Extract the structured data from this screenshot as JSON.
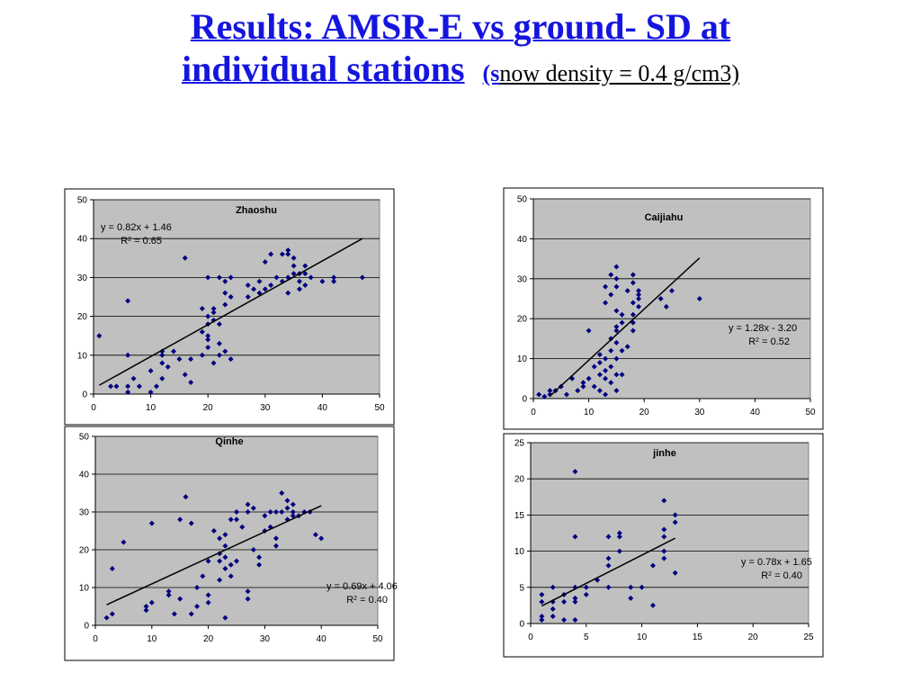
{
  "title": {
    "line1": "Results: AMSR-E vs ground- SD at",
    "line2": "individual stations",
    "paren_s": "(s",
    "subtitle": "now density = 0.4 g/cm3)"
  },
  "chart_data": [
    {
      "type": "scatter",
      "title": "Zhaoshu",
      "equation": "y = 0.82x + 1.46",
      "r2": "R2 = 0.65",
      "xlim": [
        0,
        50
      ],
      "ylim": [
        0,
        50
      ],
      "xticks": [
        0,
        10,
        20,
        30,
        40,
        50
      ],
      "yticks": [
        0,
        10,
        20,
        30,
        40,
        50
      ],
      "grid": true,
      "trendline": {
        "slope": 0.82,
        "intercept": 1.46,
        "x_range": [
          1,
          47
        ]
      },
      "points": [
        [
          1,
          15
        ],
        [
          3,
          2
        ],
        [
          4,
          2
        ],
        [
          6,
          0.5
        ],
        [
          6,
          2
        ],
        [
          6,
          10
        ],
        [
          6,
          24
        ],
        [
          7,
          4
        ],
        [
          8,
          2
        ],
        [
          10,
          0.5
        ],
        [
          10,
          6
        ],
        [
          11,
          2
        ],
        [
          12,
          4
        ],
        [
          12,
          8
        ],
        [
          12,
          10
        ],
        [
          12,
          11
        ],
        [
          13,
          7
        ],
        [
          14,
          11
        ],
        [
          15,
          9
        ],
        [
          16,
          5
        ],
        [
          16,
          35
        ],
        [
          17,
          3
        ],
        [
          17,
          9
        ],
        [
          19,
          10
        ],
        [
          19,
          16
        ],
        [
          19,
          22
        ],
        [
          20,
          12
        ],
        [
          20,
          14
        ],
        [
          20,
          15
        ],
        [
          20,
          18
        ],
        [
          20,
          20
        ],
        [
          20,
          30
        ],
        [
          21,
          8
        ],
        [
          21,
          19
        ],
        [
          21,
          21
        ],
        [
          21,
          22
        ],
        [
          22,
          10
        ],
        [
          22,
          13
        ],
        [
          22,
          18
        ],
        [
          22,
          30
        ],
        [
          23,
          23
        ],
        [
          23,
          26
        ],
        [
          23,
          29
        ],
        [
          23,
          11
        ],
        [
          24,
          9
        ],
        [
          24,
          25
        ],
        [
          24,
          30
        ],
        [
          27,
          25
        ],
        [
          27,
          28
        ],
        [
          28,
          27
        ],
        [
          29,
          26
        ],
        [
          29,
          29
        ],
        [
          30,
          27
        ],
        [
          30,
          34
        ],
        [
          31,
          28
        ],
        [
          31,
          36
        ],
        [
          32,
          30
        ],
        [
          33,
          29
        ],
        [
          33,
          36
        ],
        [
          34,
          26
        ],
        [
          34,
          30
        ],
        [
          34,
          36
        ],
        [
          34,
          37
        ],
        [
          35,
          31
        ],
        [
          35,
          33
        ],
        [
          35,
          35
        ],
        [
          36,
          27
        ],
        [
          36,
          29
        ],
        [
          36,
          31
        ],
        [
          37,
          28
        ],
        [
          37,
          31
        ],
        [
          37,
          33
        ],
        [
          38,
          30
        ],
        [
          40,
          29
        ],
        [
          42,
          29
        ],
        [
          42,
          30
        ],
        [
          47,
          30
        ]
      ]
    },
    {
      "type": "scatter",
      "title": "Caijiahu",
      "equation": "y = 1.28x - 3.20",
      "r2": "R2 = 0.52",
      "xlim": [
        0,
        50
      ],
      "ylim": [
        0,
        50
      ],
      "xticks": [
        0,
        10,
        20,
        30,
        40,
        50
      ],
      "yticks": [
        0,
        10,
        20,
        30,
        40,
        50
      ],
      "grid": true,
      "trendline": {
        "slope": 1.28,
        "intercept": -3.2,
        "x_range": [
          3,
          30
        ]
      },
      "points": [
        [
          1,
          1
        ],
        [
          2,
          0.5
        ],
        [
          3,
          1
        ],
        [
          3,
          2
        ],
        [
          4,
          2
        ],
        [
          5,
          3
        ],
        [
          6,
          1
        ],
        [
          7,
          5
        ],
        [
          8,
          2
        ],
        [
          9,
          3
        ],
        [
          9,
          4
        ],
        [
          10,
          5
        ],
        [
          10,
          17
        ],
        [
          11,
          3
        ],
        [
          11,
          8
        ],
        [
          12,
          2
        ],
        [
          12,
          6
        ],
        [
          12,
          9
        ],
        [
          12,
          11
        ],
        [
          13,
          1
        ],
        [
          13,
          5
        ],
        [
          13,
          7
        ],
        [
          13,
          10
        ],
        [
          13,
          24
        ],
        [
          13,
          28
        ],
        [
          14,
          4
        ],
        [
          14,
          8
        ],
        [
          14,
          12
        ],
        [
          14,
          15
        ],
        [
          14,
          26
        ],
        [
          14,
          31
        ],
        [
          15,
          2
        ],
        [
          15,
          6
        ],
        [
          15,
          10
        ],
        [
          15,
          14
        ],
        [
          15,
          17
        ],
        [
          15,
          18
        ],
        [
          15,
          22
        ],
        [
          15,
          28
        ],
        [
          15,
          30
        ],
        [
          15,
          33
        ],
        [
          16,
          6
        ],
        [
          16,
          12
        ],
        [
          16,
          19
        ],
        [
          16,
          21
        ],
        [
          17,
          13
        ],
        [
          17,
          27
        ],
        [
          18,
          17
        ],
        [
          18,
          19
        ],
        [
          18,
          21
        ],
        [
          18,
          24
        ],
        [
          18,
          29
        ],
        [
          18,
          31
        ],
        [
          19,
          23
        ],
        [
          19,
          25
        ],
        [
          19,
          26
        ],
        [
          19,
          27
        ],
        [
          23,
          25
        ],
        [
          24,
          23
        ],
        [
          25,
          27
        ],
        [
          30,
          25
        ]
      ]
    },
    {
      "type": "scatter",
      "title": "Qinhe",
      "equation": "y = 0.69x + 4.06",
      "r2": "R2 = 0.40",
      "xlim": [
        0,
        50
      ],
      "ylim": [
        0,
        50
      ],
      "xticks": [
        0,
        10,
        20,
        30,
        40,
        50
      ],
      "yticks": [
        0,
        10,
        20,
        30,
        40,
        50
      ],
      "grid": true,
      "trendline": {
        "slope": 0.69,
        "intercept": 4.06,
        "x_range": [
          2,
          40
        ]
      },
      "points": [
        [
          2,
          2
        ],
        [
          3,
          3
        ],
        [
          3,
          15
        ],
        [
          5,
          22
        ],
        [
          9,
          4
        ],
        [
          9,
          5
        ],
        [
          10,
          6
        ],
        [
          10,
          27
        ],
        [
          13,
          8
        ],
        [
          13,
          9
        ],
        [
          14,
          3
        ],
        [
          15,
          7
        ],
        [
          15,
          28
        ],
        [
          16,
          34
        ],
        [
          17,
          3
        ],
        [
          17,
          27
        ],
        [
          18,
          5
        ],
        [
          18,
          10
        ],
        [
          19,
          13
        ],
        [
          20,
          6
        ],
        [
          20,
          8
        ],
        [
          20,
          17
        ],
        [
          21,
          25
        ],
        [
          22,
          12
        ],
        [
          22,
          17
        ],
        [
          22,
          19
        ],
        [
          22,
          23
        ],
        [
          23,
          2
        ],
        [
          23,
          15
        ],
        [
          23,
          18
        ],
        [
          23,
          21
        ],
        [
          23,
          24
        ],
        [
          24,
          13
        ],
        [
          24,
          16
        ],
        [
          24,
          28
        ],
        [
          25,
          17
        ],
        [
          25,
          28
        ],
        [
          25,
          30
        ],
        [
          26,
          26
        ],
        [
          27,
          7
        ],
        [
          27,
          9
        ],
        [
          27,
          30
        ],
        [
          27,
          32
        ],
        [
          28,
          20
        ],
        [
          28,
          31
        ],
        [
          29,
          16
        ],
        [
          29,
          18
        ],
        [
          30,
          25
        ],
        [
          30,
          29
        ],
        [
          31,
          26
        ],
        [
          31,
          30
        ],
        [
          32,
          21
        ],
        [
          32,
          23
        ],
        [
          32,
          30
        ],
        [
          33,
          30
        ],
        [
          33,
          35
        ],
        [
          34,
          28
        ],
        [
          34,
          31
        ],
        [
          34,
          33
        ],
        [
          35,
          29
        ],
        [
          35,
          30
        ],
        [
          35,
          32
        ],
        [
          36,
          29
        ],
        [
          37,
          30
        ],
        [
          38,
          30
        ],
        [
          39,
          24
        ],
        [
          40,
          23
        ]
      ]
    },
    {
      "type": "scatter",
      "title": "jinhe",
      "equation": "y = 0.78x + 1.65",
      "r2": "R2 = 0.40",
      "xlim": [
        0,
        25
      ],
      "ylim": [
        0,
        25
      ],
      "xticks": [
        0,
        5,
        10,
        15,
        20,
        25
      ],
      "yticks": [
        0,
        5,
        10,
        15,
        20,
        25
      ],
      "grid": true,
      "trendline": {
        "slope": 0.78,
        "intercept": 1.65,
        "x_range": [
          1,
          13
        ]
      },
      "points": [
        [
          1,
          0.5
        ],
        [
          1,
          1
        ],
        [
          1,
          3
        ],
        [
          1,
          4
        ],
        [
          2,
          1
        ],
        [
          2,
          2
        ],
        [
          2,
          3
        ],
        [
          2,
          5
        ],
        [
          3,
          0.5
        ],
        [
          3,
          3
        ],
        [
          3,
          4
        ],
        [
          4,
          0.5
        ],
        [
          4,
          3
        ],
        [
          4,
          3.5
        ],
        [
          4,
          5
        ],
        [
          4,
          12
        ],
        [
          4,
          21
        ],
        [
          5,
          4
        ],
        [
          5,
          5
        ],
        [
          6,
          6
        ],
        [
          7,
          5
        ],
        [
          7,
          8
        ],
        [
          7,
          9
        ],
        [
          7,
          12
        ],
        [
          8,
          10
        ],
        [
          8,
          12
        ],
        [
          8,
          12.5
        ],
        [
          9,
          3.5
        ],
        [
          9,
          5
        ],
        [
          10,
          5
        ],
        [
          11,
          2.5
        ],
        [
          11,
          8
        ],
        [
          12,
          9
        ],
        [
          12,
          10
        ],
        [
          12,
          12
        ],
        [
          12,
          13
        ],
        [
          12,
          17
        ],
        [
          13,
          7
        ],
        [
          13,
          14
        ],
        [
          13,
          15
        ]
      ]
    }
  ]
}
